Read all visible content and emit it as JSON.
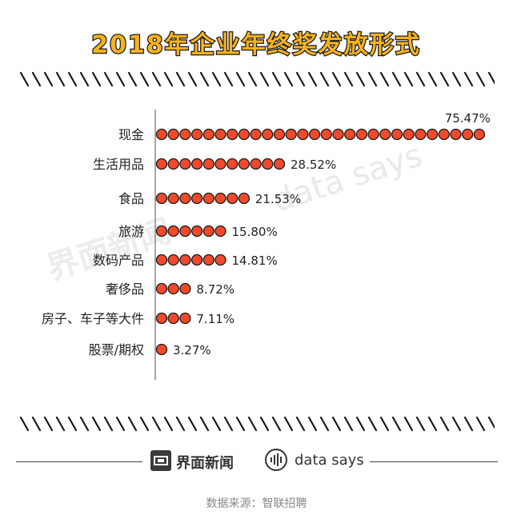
{
  "header": {
    "title": "2018年企业年终奖发放形式"
  },
  "chart_data": {
    "type": "bar",
    "categories": [
      "现金",
      "生活用品",
      "食品",
      "旅游",
      "数码产品",
      "奢侈品",
      "房子、车子等大件",
      "股票/期权"
    ],
    "values": [
      75.47,
      28.52,
      21.53,
      15.8,
      14.81,
      8.72,
      7.11,
      3.27
    ],
    "value_labels": [
      "75.47%",
      "28.52%",
      "21.53%",
      "15.80%",
      "14.81%",
      "8.72%",
      "7.11%",
      "3.27%"
    ],
    "title": "2018年企业年终奖发放形式",
    "xlabel": "",
    "ylabel": "",
    "orientation": "horizontal",
    "mark": "dots",
    "colors": {
      "dot_fill": "#f04a2c",
      "dot_stroke": "#1a1a1a",
      "title_fill": "#f7b21e"
    }
  },
  "footer": {
    "brand1": "界面新闻",
    "brand2": "data says",
    "source": "数据来源：智联招聘"
  },
  "watermark": {
    "brand1": "界面新闻",
    "brand2": "data says"
  }
}
